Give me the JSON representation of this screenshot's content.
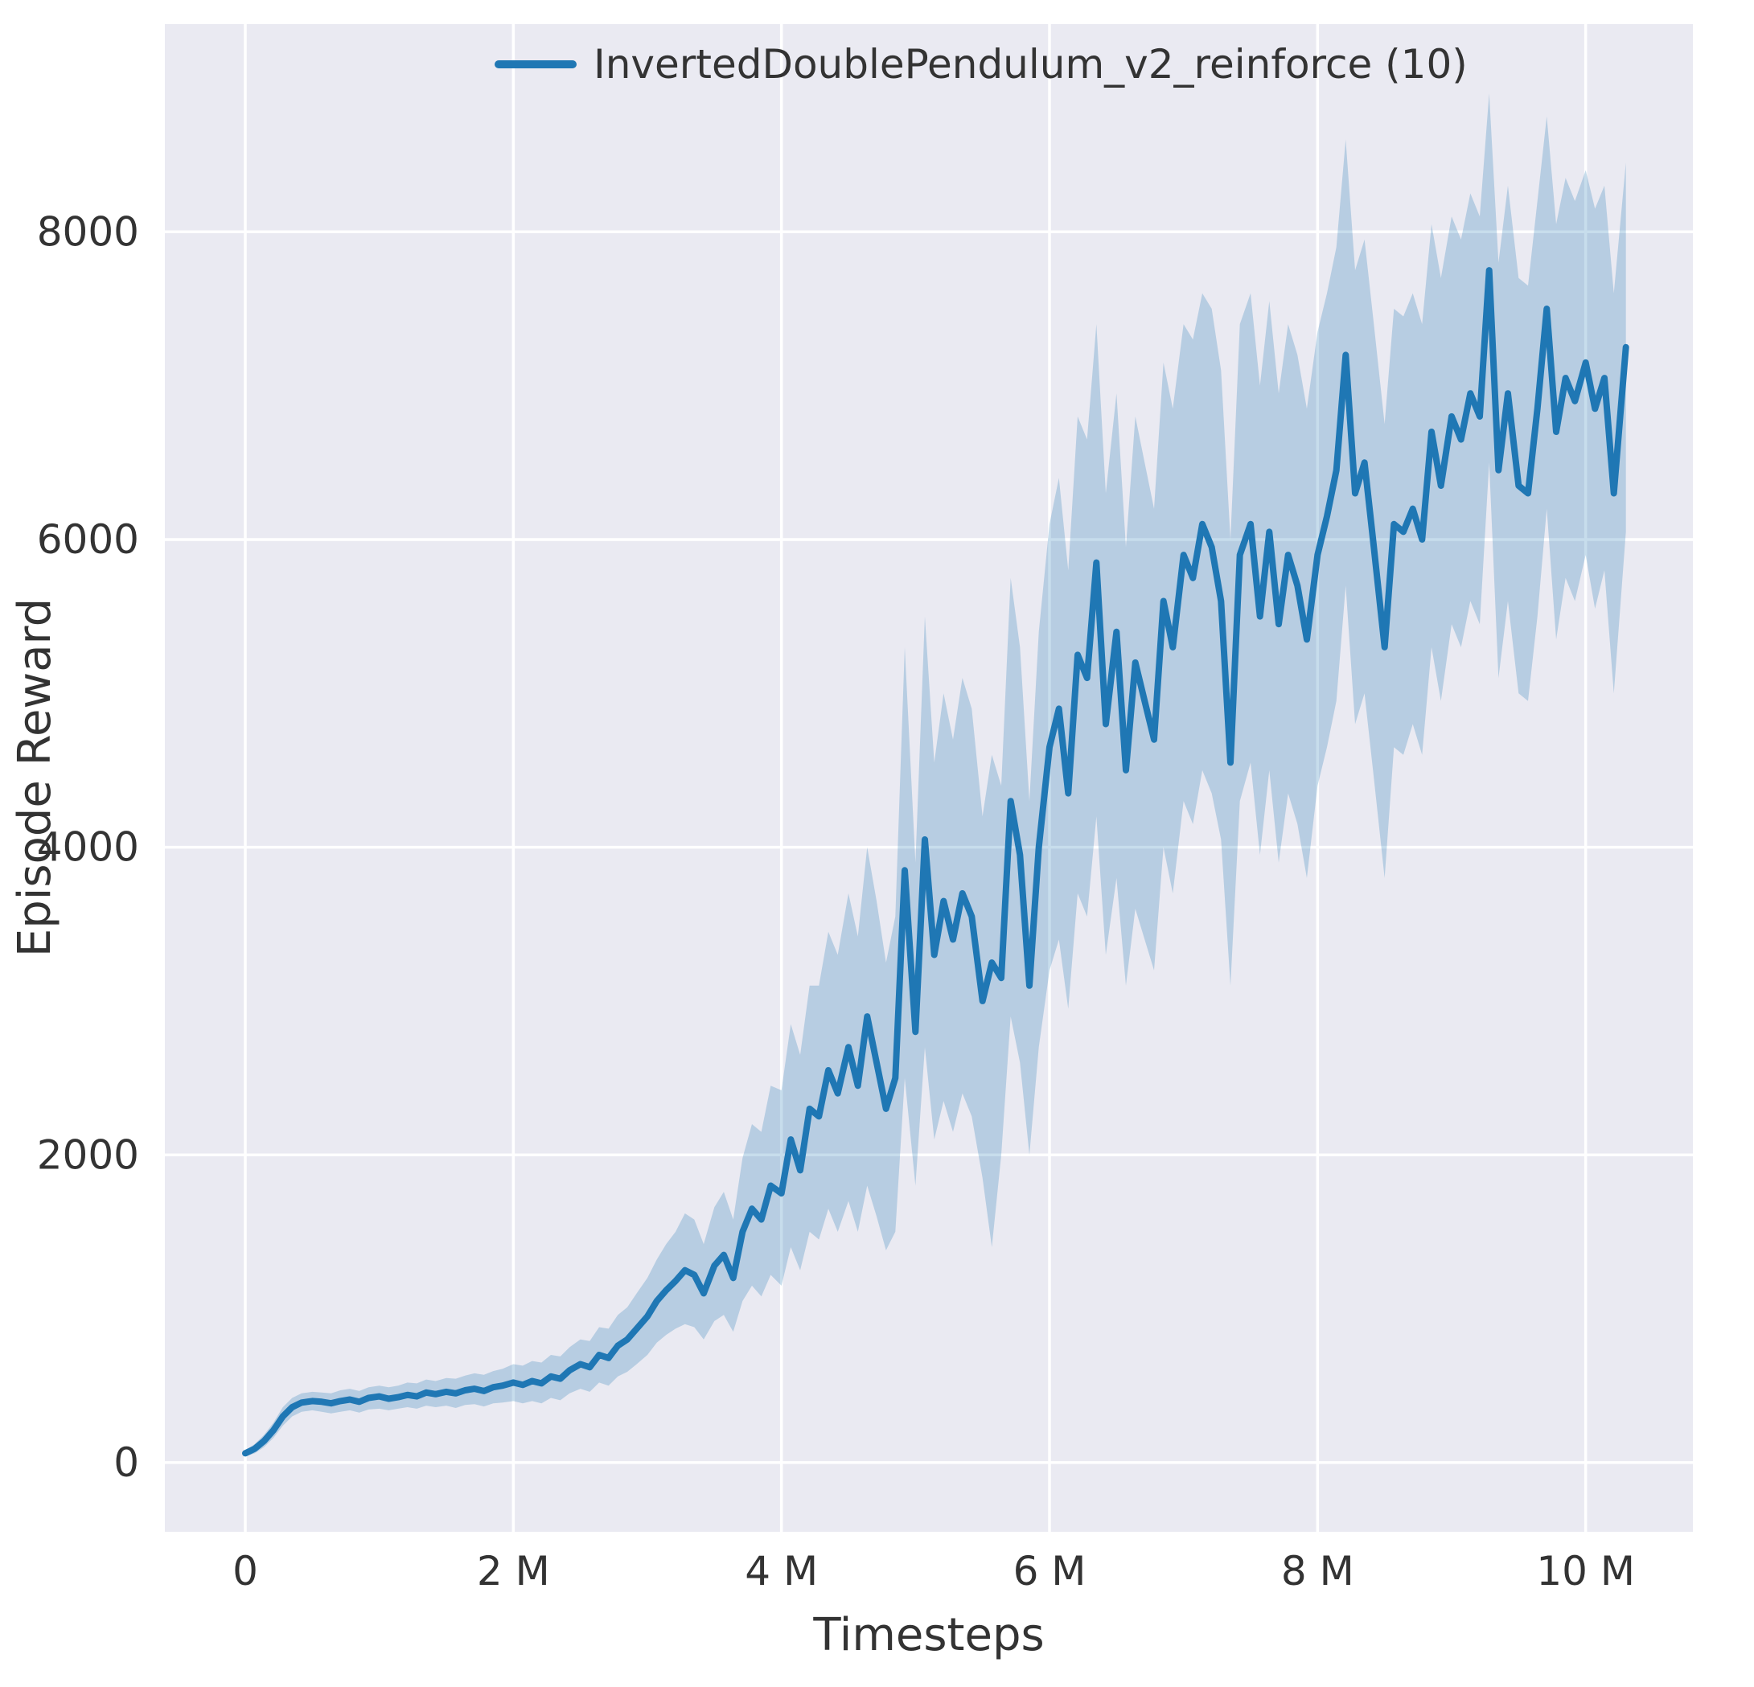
{
  "styles": {
    "plot_bg": "#eaeaf2",
    "grid_color": "#ffffff",
    "text_color": "#333333",
    "line_color": "#1f77b4",
    "band_color": "#1f77b4",
    "band_opacity": 0.25
  },
  "chart_data": {
    "type": "line",
    "title": "",
    "xlabel": "Timesteps",
    "ylabel": "Episode Reward",
    "x_unit": "millions_of_timesteps",
    "grid": true,
    "legend_position": "upper center",
    "xlim": [
      -0.6,
      10.8
    ],
    "ylim": [
      -450,
      9350
    ],
    "xticks": [
      {
        "v": 0,
        "label": "0"
      },
      {
        "v": 2,
        "label": "2 M"
      },
      {
        "v": 4,
        "label": "4 M"
      },
      {
        "v": 6,
        "label": "6 M"
      },
      {
        "v": 8,
        "label": "8 M"
      },
      {
        "v": 10,
        "label": "10 M"
      }
    ],
    "yticks": [
      {
        "v": 0,
        "label": "0"
      },
      {
        "v": 2000,
        "label": "2000"
      },
      {
        "v": 4000,
        "label": "4000"
      },
      {
        "v": 6000,
        "label": "6000"
      },
      {
        "v": 8000,
        "label": "8000"
      }
    ],
    "series": [
      {
        "name": "InvertedDoublePendulum_v2_reinforce (10)",
        "color": "#1f77b4",
        "band_color": "#1f77b4",
        "band_opacity": 0.25,
        "x": [
          0,
          0.07,
          0.14,
          0.21,
          0.28,
          0.35,
          0.42,
          0.5,
          0.57,
          0.64,
          0.71,
          0.78,
          0.85,
          0.92,
          1,
          1.07,
          1.14,
          1.21,
          1.28,
          1.35,
          1.42,
          1.5,
          1.57,
          1.64,
          1.71,
          1.78,
          1.85,
          1.92,
          2,
          2.07,
          2.14,
          2.21,
          2.28,
          2.35,
          2.42,
          2.5,
          2.57,
          2.64,
          2.71,
          2.78,
          2.85,
          2.92,
          3,
          3.07,
          3.14,
          3.21,
          3.28,
          3.35,
          3.42,
          3.5,
          3.57,
          3.64,
          3.71,
          3.78,
          3.85,
          3.92,
          4,
          4.07,
          4.14,
          4.21,
          4.28,
          4.35,
          4.42,
          4.5,
          4.57,
          4.64,
          4.71,
          4.78,
          4.85,
          4.92,
          5,
          5.07,
          5.14,
          5.21,
          5.28,
          5.35,
          5.42,
          5.5,
          5.57,
          5.64,
          5.71,
          5.78,
          5.85,
          5.92,
          6,
          6.07,
          6.14,
          6.21,
          6.28,
          6.35,
          6.42,
          6.5,
          6.57,
          6.64,
          6.71,
          6.78,
          6.85,
          6.92,
          7,
          7.07,
          7.14,
          7.21,
          7.28,
          7.35,
          7.42,
          7.5,
          7.57,
          7.64,
          7.71,
          7.78,
          7.85,
          7.92,
          8,
          8.07,
          8.14,
          8.21,
          8.28,
          8.35,
          8.42,
          8.5,
          8.57,
          8.64,
          8.71,
          8.78,
          8.85,
          8.92,
          9,
          9.07,
          9.14,
          9.21,
          9.28,
          9.35,
          9.42,
          9.5,
          9.57,
          9.64,
          9.71,
          9.78,
          9.85,
          9.92,
          10,
          10.07,
          10.14,
          10.21,
          10.3
        ],
        "mean": [
          60,
          90,
          140,
          210,
          300,
          360,
          390,
          400,
          395,
          385,
          400,
          410,
          395,
          420,
          430,
          415,
          425,
          440,
          430,
          455,
          445,
          460,
          450,
          470,
          480,
          465,
          490,
          500,
          520,
          505,
          530,
          515,
          560,
          545,
          600,
          640,
          620,
          700,
          680,
          760,
          800,
          870,
          950,
          1050,
          1120,
          1180,
          1250,
          1220,
          1100,
          1280,
          1350,
          1200,
          1500,
          1650,
          1580,
          1800,
          1750,
          2100,
          1900,
          2300,
          2250,
          2550,
          2400,
          2700,
          2450,
          2900,
          2600,
          2300,
          2500,
          3850,
          2800,
          4050,
          3300,
          3650,
          3400,
          3700,
          3550,
          3000,
          3250,
          3150,
          4300,
          3950,
          3100,
          4000,
          4650,
          4900,
          4350,
          5250,
          5100,
          5850,
          4800,
          5400,
          4500,
          5200,
          4950,
          4700,
          5600,
          5300,
          5900,
          5750,
          6100,
          5950,
          5600,
          4550,
          5900,
          6100,
          5500,
          6050,
          5450,
          5900,
          5700,
          5350,
          5900,
          6150,
          6450,
          7200,
          6300,
          6500,
          5950,
          5300,
          6100,
          6050,
          6200,
          6000,
          6700,
          6350,
          6800,
          6650,
          6950,
          6800,
          7750,
          6450,
          6950,
          6350,
          6300,
          6850,
          7500,
          6700,
          7050,
          6900,
          7150,
          6850,
          7050,
          6300,
          7250
        ],
        "lo": [
          40,
          60,
          100,
          160,
          240,
          300,
          330,
          340,
          330,
          320,
          330,
          340,
          325,
          345,
          350,
          340,
          350,
          360,
          350,
          370,
          360,
          370,
          355,
          375,
          380,
          365,
          385,
          390,
          400,
          385,
          400,
          385,
          420,
          405,
          450,
          480,
          460,
          520,
          500,
          560,
          590,
          640,
          700,
          780,
          830,
          870,
          900,
          880,
          800,
          920,
          960,
          850,
          1050,
          1150,
          1080,
          1220,
          1150,
          1400,
          1250,
          1500,
          1450,
          1650,
          1500,
          1700,
          1500,
          1800,
          1600,
          1380,
          1500,
          2500,
          1800,
          2700,
          2100,
          2350,
          2150,
          2400,
          2250,
          1850,
          1400,
          2000,
          2900,
          2600,
          2000,
          2700,
          3200,
          3400,
          2950,
          3700,
          3550,
          4200,
          3300,
          3800,
          3100,
          3600,
          3400,
          3200,
          4000,
          3700,
          4300,
          4150,
          4500,
          4350,
          4050,
          3100,
          4300,
          4550,
          3950,
          4500,
          3900,
          4350,
          4150,
          3800,
          4400,
          4650,
          4950,
          5700,
          4800,
          5000,
          4450,
          3800,
          4650,
          4600,
          4800,
          4600,
          5300,
          4950,
          5450,
          5300,
          5600,
          5450,
          6500,
          5100,
          5600,
          5000,
          4950,
          5500,
          6200,
          5350,
          5750,
          5600,
          5900,
          5550,
          5800,
          5000,
          6050
        ],
        "hi": [
          80,
          120,
          180,
          260,
          360,
          420,
          450,
          460,
          455,
          450,
          470,
          480,
          465,
          490,
          500,
          490,
          500,
          520,
          515,
          540,
          530,
          550,
          545,
          565,
          580,
          570,
          595,
          610,
          640,
          630,
          660,
          650,
          700,
          690,
          750,
          800,
          790,
          880,
          870,
          960,
          1010,
          1100,
          1200,
          1320,
          1420,
          1500,
          1620,
          1580,
          1420,
          1660,
          1760,
          1580,
          1980,
          2200,
          2150,
          2450,
          2420,
          2850,
          2650,
          3100,
          3100,
          3450,
          3300,
          3700,
          3420,
          4000,
          3650,
          3250,
          3550,
          5300,
          3900,
          5500,
          4550,
          5000,
          4700,
          5100,
          4900,
          4200,
          4600,
          4400,
          5750,
          5300,
          4300,
          5400,
          6100,
          6400,
          5800,
          6800,
          6650,
          7400,
          6300,
          6950,
          5950,
          6800,
          6500,
          6200,
          7150,
          6850,
          7400,
          7300,
          7600,
          7500,
          7100,
          6000,
          7400,
          7600,
          7000,
          7550,
          6950,
          7400,
          7200,
          6850,
          7350,
          7600,
          7900,
          8600,
          7750,
          7950,
          7400,
          6750,
          7500,
          7450,
          7600,
          7400,
          8050,
          7700,
          8100,
          7950,
          8250,
          8100,
          8900,
          7800,
          8300,
          7700,
          7650,
          8200,
          8750,
          8050,
          8350,
          8200,
          8400,
          8150,
          8300,
          7600,
          8450
        ]
      }
    ]
  }
}
